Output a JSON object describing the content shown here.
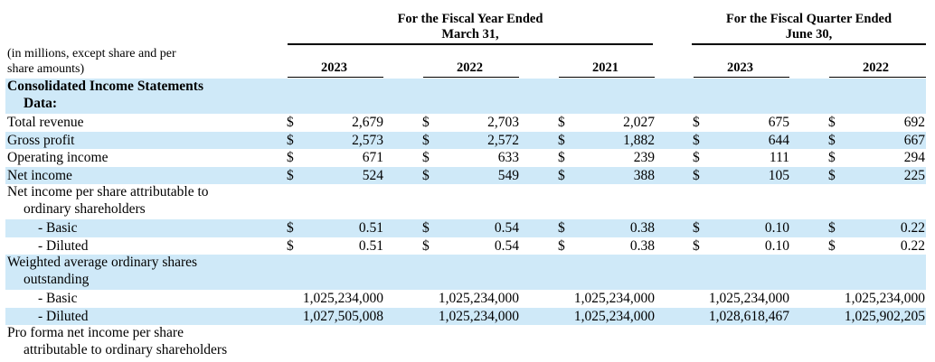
{
  "header": {
    "fiscal_year_group": [
      "For the Fiscal Year Ended",
      "March 31,"
    ],
    "fiscal_quarter_group": [
      "For the Fiscal Quarter Ended",
      "June 30,"
    ],
    "units_note": [
      "(in millions, except share and per",
      "share amounts)"
    ],
    "year_columns": [
      "2023",
      "2022",
      "2021",
      "2023",
      "2022"
    ]
  },
  "table": {
    "section_title": [
      "Consolidated Income Statements",
      "Data:"
    ],
    "rows": [
      {
        "label": "Total revenue",
        "dollar": true,
        "values": [
          "2,679",
          "2,703",
          "2,027",
          "675",
          "692"
        ]
      },
      {
        "label": "Gross profit",
        "dollar": true,
        "values": [
          "2,573",
          "2,572",
          "1,882",
          "644",
          "667"
        ]
      },
      {
        "label": "Operating income",
        "dollar": true,
        "values": [
          "671",
          "633",
          "239",
          "111",
          "294"
        ]
      },
      {
        "label": "Net income",
        "dollar": true,
        "values": [
          "524",
          "549",
          "388",
          "105",
          "225"
        ]
      },
      {
        "label": [
          "Net income per share attributable to",
          "ordinary shareholders"
        ]
      },
      {
        "label": "- Basic",
        "dollar": true,
        "values": [
          "0.51",
          "0.54",
          "0.38",
          "0.10",
          "0.22"
        ]
      },
      {
        "label": "- Diluted",
        "dollar": true,
        "values": [
          "0.51",
          "0.54",
          "0.38",
          "0.10",
          "0.22"
        ]
      },
      {
        "label": [
          "Weighted average ordinary shares",
          "outstanding"
        ]
      },
      {
        "label": "- Basic",
        "dollar": false,
        "values": [
          "1,025,234,000",
          "1,025,234,000",
          "1,025,234,000",
          "1,025,234,000",
          "1,025,234,000"
        ]
      },
      {
        "label": "- Diluted",
        "dollar": false,
        "values": [
          "1,027,505,008",
          "1,025,234,000",
          "1,025,234,000",
          "1,028,618,467",
          "1,025,902,205"
        ]
      },
      {
        "label": [
          "Pro forma net income per share",
          "attributable to ordinary shareholders"
        ]
      }
    ],
    "dollar_sign": "$"
  }
}
